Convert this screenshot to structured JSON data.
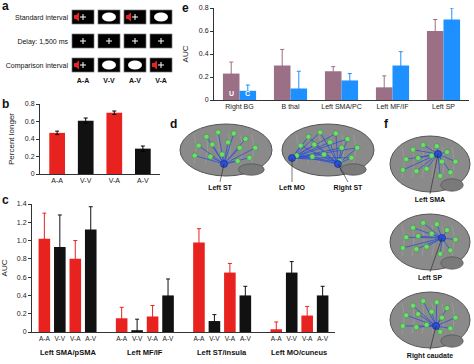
{
  "chart_data": [
    {
      "type": "bar",
      "title": "b",
      "categories": [
        "A-A",
        "V-V",
        "V-A",
        "A-V"
      ],
      "values": [
        0.47,
        0.61,
        0.7,
        0.29
      ],
      "errors": [
        0.02,
        0.03,
        0.02,
        0.03
      ],
      "colors": [
        "#e8231f",
        "#111111",
        "#e8231f",
        "#111111"
      ],
      "ylabel": "Percent longer",
      "ylim": [
        0,
        0.8
      ],
      "yticks": [
        0,
        0.2,
        0.4,
        0.6,
        0.8
      ]
    },
    {
      "type": "bar",
      "title": "c",
      "categories": [
        "Left SMA/pSMA",
        "Left MF/IF",
        "Left ST/insula",
        "Left MO/cuneus"
      ],
      "series": [
        {
          "name": "A-A",
          "color": "#e8231f",
          "values": [
            1.02,
            0.15,
            0.98,
            0.03
          ],
          "errors": [
            0.28,
            0.12,
            0.15,
            0.08
          ]
        },
        {
          "name": "V-V",
          "color": "#111111",
          "values": [
            0.93,
            0.02,
            0.12,
            0.65
          ],
          "errors": [
            0.35,
            0.12,
            0.07,
            0.12
          ]
        },
        {
          "name": "V-A",
          "color": "#e8231f",
          "values": [
            0.8,
            0.17,
            0.65,
            0.18
          ],
          "errors": [
            0.2,
            0.12,
            0.1,
            0.1
          ]
        },
        {
          "name": "A-V",
          "color": "#111111",
          "values": [
            1.12,
            0.4,
            0.4,
            0.4
          ],
          "errors": [
            0.25,
            0.18,
            0.1,
            0.1
          ]
        }
      ],
      "ylabel": "AUC",
      "ylim": [
        0,
        1.4
      ],
      "yticks": [
        0,
        0.2,
        0.4,
        0.6,
        0.8,
        {
          "value": 1,
          "label": "1.0"
        },
        1.2,
        1.4
      ]
    },
    {
      "type": "bar",
      "title": "e",
      "categories": [
        "Right BG",
        "B thal",
        "Left SMA/PC",
        "Left MF/IF",
        "Left SP"
      ],
      "series": [
        {
          "name": "U",
          "color": "#9b6f86",
          "values": [
            0.23,
            0.3,
            0.25,
            0.11,
            0.6
          ],
          "errors": [
            0.1,
            0.14,
            0.04,
            0.1,
            0.1
          ]
        },
        {
          "name": "C",
          "color": "#1e90ff",
          "values": [
            0.08,
            0.1,
            0.17,
            0.3,
            0.7
          ],
          "errors": [
            0.05,
            0.15,
            0.06,
            0.12,
            0.1
          ]
        }
      ],
      "ylabel": "AUC",
      "ylim": [
        0,
        0.8
      ],
      "yticks": [
        0,
        0.2,
        0.4,
        0.6,
        0.8
      ]
    }
  ],
  "diagrams": [
    {
      "title": "a",
      "rows": [
        "Standard interval",
        "Delay: 1,500 ms",
        "Comparison interval"
      ],
      "columns": [
        "A-A",
        "V-V",
        "A-V",
        "V-A"
      ]
    },
    {
      "title": "d",
      "labels": [
        "Left ST",
        "Left MO",
        "Right ST"
      ]
    },
    {
      "title": "f",
      "labels": [
        "Left SMA",
        "Left SP",
        "Right caudate"
      ]
    }
  ]
}
